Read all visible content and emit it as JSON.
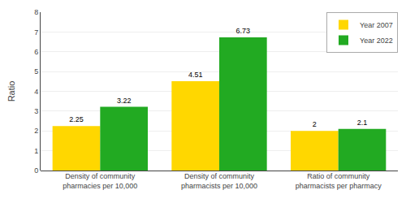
{
  "chart_data": {
    "type": "bar",
    "categories": [
      "Density of community\npharmacies per 10,000",
      "Density of community\npharmacists per 10,000",
      "Ratio of community\npharmacists per pharmacy"
    ],
    "series": [
      {
        "name": "Year 2007",
        "color": "#FFD700",
        "values": [
          2.25,
          4.51,
          2.0
        ]
      },
      {
        "name": "Year 2022",
        "color": "#22AA22",
        "values": [
          3.22,
          6.73,
          2.1
        ]
      }
    ],
    "ylabel": "Ratio",
    "ylim": [
      0,
      8
    ],
    "yticks": [
      0,
      1,
      2,
      3,
      4,
      5,
      6,
      7,
      8
    ],
    "grid": true,
    "legend": "upper right",
    "data_labels": true
  }
}
